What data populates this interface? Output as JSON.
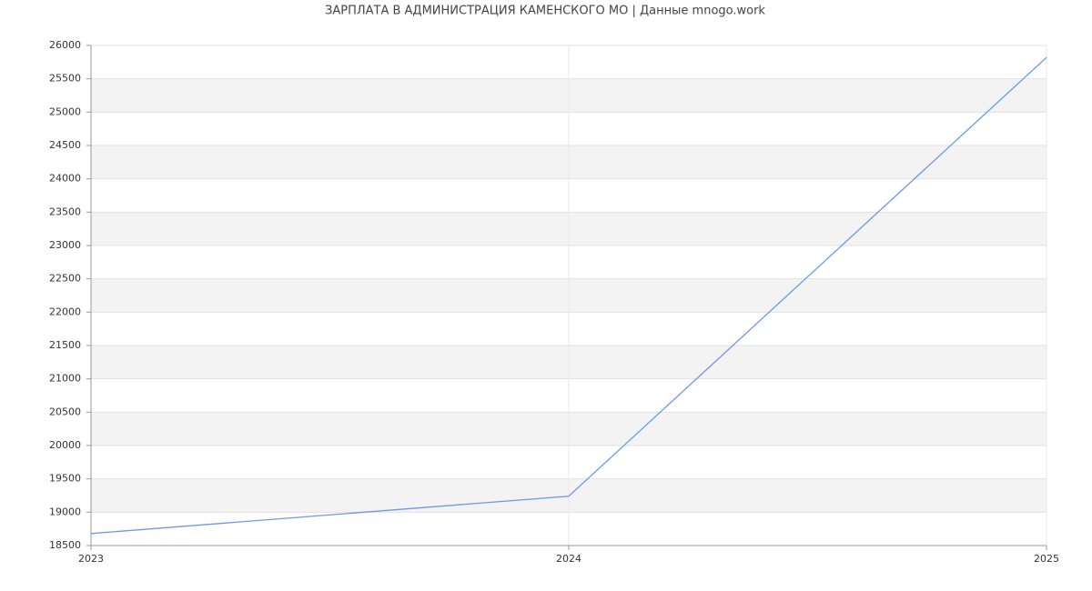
{
  "chart_data": {
    "type": "line",
    "title": "ЗАРПЛАТА В АДМИНИСТРАЦИЯ КАМЕНСКОГО МО | Данные mnogo.work",
    "x": [
      2023,
      2024,
      2025
    ],
    "values": [
      18680,
      19240,
      25820
    ],
    "color": "#6b9ae8",
    "xlim": [
      2023,
      2025
    ],
    "xticks": [
      2023,
      2024,
      2025
    ],
    "ylim": [
      18500,
      26000
    ],
    "yticks": [
      18500,
      19000,
      19500,
      20000,
      20500,
      21000,
      21500,
      22000,
      22500,
      23000,
      23500,
      24000,
      24500,
      25000,
      25500,
      26000
    ],
    "grid": true
  }
}
